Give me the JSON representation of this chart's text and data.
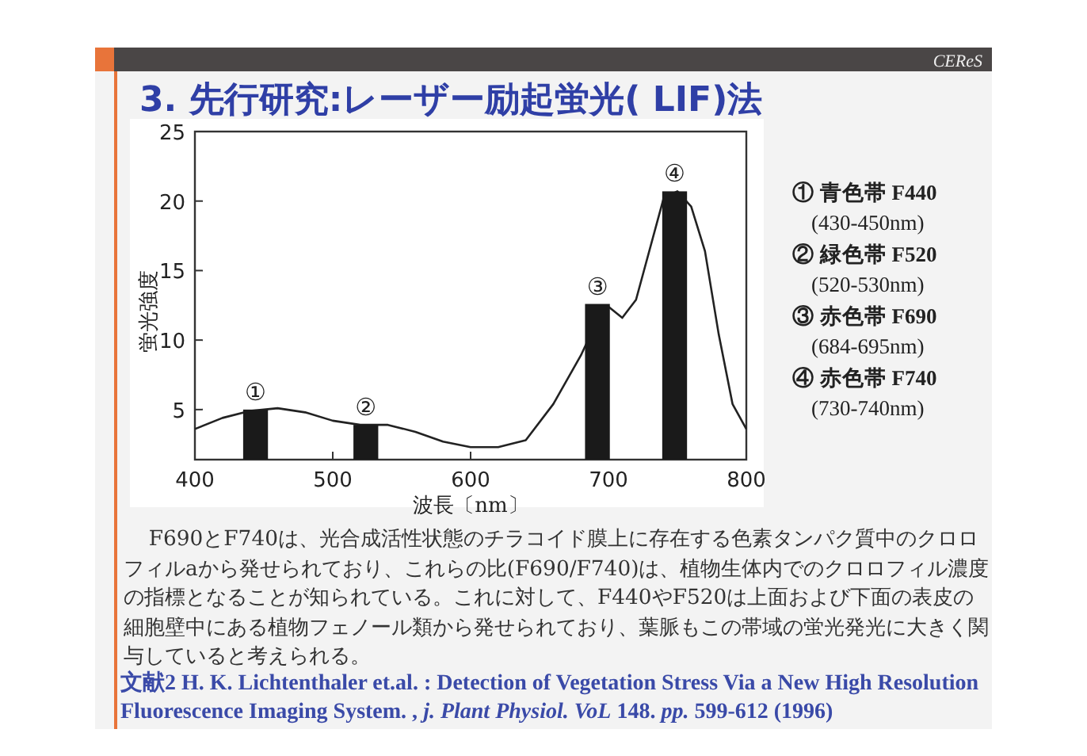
{
  "chart_data": {
    "type": "line",
    "title": "3. 先行研究:レーザー励起蛍光( LIF)法",
    "xlabel": "波長〔nm〕",
    "ylabel": "蛍光強度",
    "xlim": [
      400,
      800
    ],
    "ylim": [
      1.4,
      25
    ],
    "xticks": [
      400,
      500,
      600,
      700,
      800
    ],
    "yticks": [
      5,
      10,
      15,
      20,
      25
    ],
    "grid": false,
    "series": [
      {
        "color": "#222222",
        "x": [
          400,
          420,
          440,
          460,
          480,
          500,
          520,
          540,
          560,
          580,
          600,
          620,
          640,
          660,
          680,
          695,
          700,
          710,
          720,
          740,
          750,
          760,
          770,
          780,
          790,
          800
        ],
        "values": [
          3.6,
          4.4,
          4.9,
          5.1,
          4.8,
          4.2,
          3.9,
          3.9,
          3.4,
          2.7,
          2.3,
          2.3,
          2.8,
          5.4,
          8.9,
          12.1,
          12.4,
          11.6,
          12.9,
          20.2,
          20.7,
          19.6,
          16.4,
          10.4,
          5.4,
          3.6
        ]
      },
      {
        "type": "bar",
        "color": "#1a1a1a",
        "x": [
          444,
          524,
          692,
          748
        ],
        "values": [
          5.0,
          3.9,
          12.6,
          20.7
        ]
      }
    ],
    "annotations": [
      "CEReS",
      "① 青色帯 F440",
      "(430-450nm)",
      "② 緑色帯 F520",
      "(520-530nm)",
      "③ 赤色帯 F690",
      "(684-695nm)",
      "④ 赤色帯 F740",
      "(730-740nm)",
      "F690とF740は、光合成活性状態のチラコイド膜上に存在する色素タンパク質中のクロロフィルaから発せられており、これらの比(F690/F740)は、植物生体内でのクロロフィル濃度の指標となることが知られている。これに対して、F440やF520は上面および下面の表皮の細胞壁中にある植物フェノール類から発せられており、葉脈もこの帯域の蛍光発光に大きく関与していると考えられる。",
      "文献2 H. K. Lichtenthaler et.al. : Detection of Vegetation Stress Via a New High Resolution Fluorescence Imaging System. , *j. Plant Physiol. VoL* 148. *pp.* 599-612 (1996)",
      {
        "text": "①",
        "x": 444,
        "y": 5.0
      },
      {
        "text": "②",
        "x": 524,
        "y": 3.9
      },
      {
        "text": "③",
        "x": 692,
        "y": 12.6
      },
      {
        "text": "④",
        "x": 748,
        "y": 20.7
      }
    ]
  }
}
